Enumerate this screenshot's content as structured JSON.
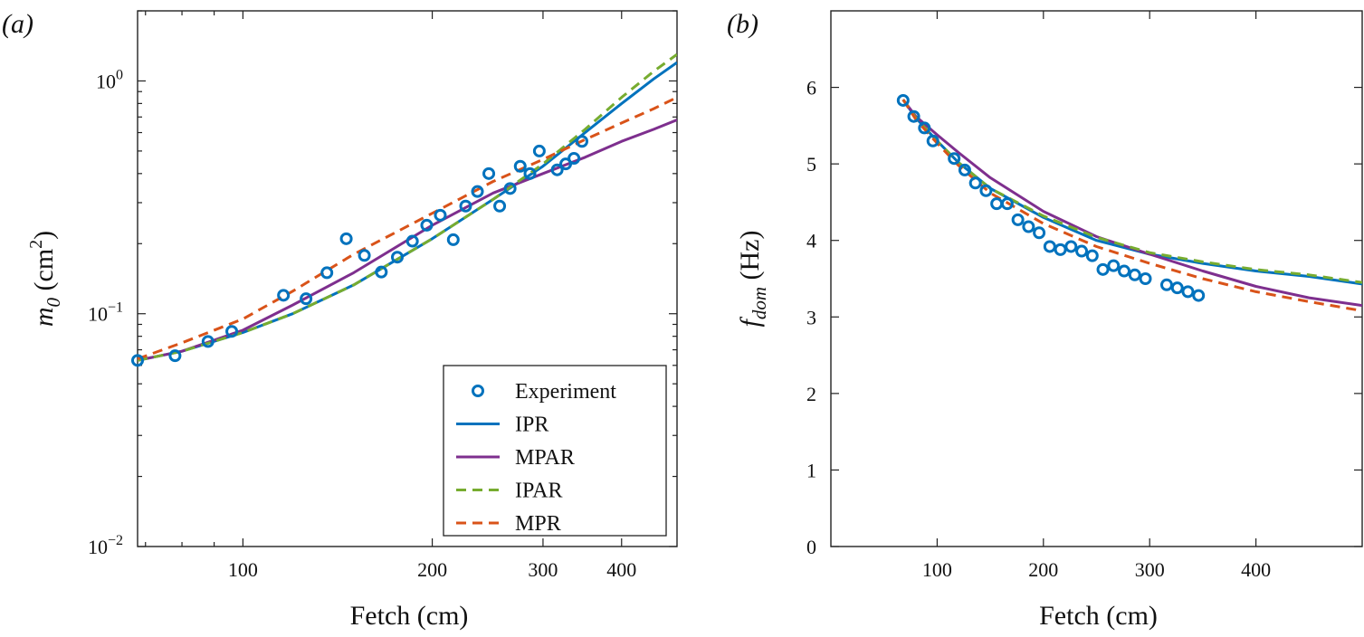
{
  "colors": {
    "experiment": "#0072BD",
    "ipr": "#0072BD",
    "mpar": "#7E2F8E",
    "ipar": "#77AC30",
    "mpr": "#D95319"
  },
  "chart_data": [
    {
      "type": "line",
      "panel_label": "(a)",
      "title": "",
      "xlabel": "Fetch (cm)",
      "ylabel_base": "m",
      "ylabel_sub": "0",
      "ylabel_unit_open": " (cm",
      "ylabel_unit_sup": "2",
      "ylabel_unit_close": ")",
      "xscale": "log",
      "yscale": "log",
      "xlim": [
        68,
        490
      ],
      "ylim": [
        0.01,
        2.0
      ],
      "xticks": [
        100,
        200,
        300,
        400
      ],
      "xtick_labels": [
        "100",
        "200",
        "300",
        "400"
      ],
      "yticks": [
        1,
        0.1,
        0.01
      ],
      "ytick_bases": [
        "10",
        "10",
        "10"
      ],
      "ytick_exps": [
        "0",
        "−1",
        "−2"
      ],
      "legend_position": "bottom-right",
      "legend": [
        "Experiment",
        "IPR",
        "MPAR",
        "IPAR",
        "MPR"
      ],
      "series": [
        {
          "name": "Experiment",
          "style": "marker",
          "color_key": "experiment",
          "x": [
            68,
            78,
            88,
            96,
            116,
            126,
            136,
            146,
            156,
            166,
            176,
            186,
            196,
            206,
            216,
            226,
            236,
            246,
            256,
            266,
            276,
            286,
            296,
            316,
            326,
            336,
            346
          ],
          "y": [
            0.063,
            0.066,
            0.076,
            0.084,
            0.12,
            0.116,
            0.15,
            0.21,
            0.178,
            0.151,
            0.175,
            0.205,
            0.24,
            0.265,
            0.208,
            0.29,
            0.335,
            0.4,
            0.29,
            0.345,
            0.43,
            0.4,
            0.5,
            0.415,
            0.44,
            0.465,
            0.55
          ]
        },
        {
          "name": "IPR",
          "style": "solid",
          "color_key": "ipr",
          "x": [
            68,
            80,
            100,
            120,
            150,
            200,
            250,
            300,
            350,
            400,
            450,
            490
          ],
          "y": [
            0.063,
            0.069,
            0.083,
            0.1,
            0.133,
            0.21,
            0.31,
            0.43,
            0.6,
            0.8,
            1.02,
            1.2
          ]
        },
        {
          "name": "MPAR",
          "style": "solid",
          "color_key": "mpar",
          "x": [
            68,
            80,
            100,
            120,
            150,
            200,
            250,
            300,
            350,
            400,
            450,
            490
          ],
          "y": [
            0.063,
            0.069,
            0.085,
            0.109,
            0.15,
            0.24,
            0.33,
            0.4,
            0.47,
            0.55,
            0.62,
            0.68
          ]
        },
        {
          "name": "IPAR",
          "style": "dashed",
          "color_key": "ipar",
          "x": [
            68,
            80,
            100,
            120,
            150,
            200,
            250,
            300,
            350,
            400,
            450,
            490
          ],
          "y": [
            0.063,
            0.069,
            0.083,
            0.1,
            0.133,
            0.21,
            0.31,
            0.44,
            0.62,
            0.85,
            1.1,
            1.3
          ]
        },
        {
          "name": "MPR",
          "style": "dashed",
          "color_key": "mpr",
          "x": [
            68,
            80,
            100,
            120,
            150,
            200,
            250,
            300,
            350,
            400,
            450,
            490
          ],
          "y": [
            0.064,
            0.075,
            0.095,
            0.125,
            0.18,
            0.27,
            0.37,
            0.46,
            0.56,
            0.66,
            0.76,
            0.85
          ]
        }
      ]
    },
    {
      "type": "line",
      "panel_label": "(b)",
      "title": "",
      "xlabel": "Fetch (cm)",
      "ylabel_base": "f",
      "ylabel_sub": "dom",
      "ylabel_unit_open": " (Hz)",
      "ylabel_unit_sup": "",
      "ylabel_unit_close": "",
      "xscale": "linear",
      "yscale": "linear",
      "xlim": [
        0,
        500
      ],
      "ylim": [
        0,
        7
      ],
      "xticks": [
        100,
        200,
        300,
        400
      ],
      "xtick_labels": [
        "100",
        "200",
        "300",
        "400"
      ],
      "yticks": [
        0,
        1,
        2,
        3,
        4,
        5,
        6
      ],
      "ytick_labels": [
        "0",
        "1",
        "2",
        "3",
        "4",
        "5",
        "6"
      ],
      "series": [
        {
          "name": "Experiment",
          "style": "marker",
          "color_key": "experiment",
          "x": [
            68,
            78,
            88,
            96,
            116,
            126,
            136,
            146,
            156,
            166,
            176,
            186,
            196,
            206,
            216,
            226,
            236,
            246,
            256,
            266,
            276,
            286,
            296,
            316,
            326,
            336,
            346
          ],
          "y": [
            5.83,
            5.62,
            5.47,
            5.3,
            5.07,
            4.92,
            4.75,
            4.65,
            4.48,
            4.48,
            4.27,
            4.18,
            4.1,
            3.92,
            3.88,
            3.92,
            3.86,
            3.8,
            3.62,
            3.67,
            3.6,
            3.55,
            3.5,
            3.42,
            3.38,
            3.33,
            3.28
          ]
        },
        {
          "name": "IPR",
          "style": "solid",
          "color_key": "ipr",
          "x": [
            68,
            80,
            100,
            120,
            150,
            200,
            250,
            300,
            350,
            400,
            450,
            500
          ],
          "y": [
            5.84,
            5.6,
            5.3,
            5.02,
            4.68,
            4.3,
            4.0,
            3.82,
            3.7,
            3.6,
            3.53,
            3.43
          ]
        },
        {
          "name": "MPAR",
          "style": "solid",
          "color_key": "mpar",
          "x": [
            68,
            80,
            100,
            120,
            150,
            200,
            250,
            300,
            350,
            400,
            450,
            500
          ],
          "y": [
            5.84,
            5.62,
            5.38,
            5.15,
            4.82,
            4.38,
            4.05,
            3.82,
            3.6,
            3.4,
            3.25,
            3.15
          ]
        },
        {
          "name": "IPAR",
          "style": "dashed",
          "color_key": "ipar",
          "x": [
            68,
            80,
            100,
            120,
            150,
            200,
            250,
            300,
            350,
            400,
            450,
            500
          ],
          "y": [
            5.84,
            5.6,
            5.3,
            5.02,
            4.68,
            4.32,
            4.04,
            3.84,
            3.72,
            3.62,
            3.55,
            3.45
          ]
        },
        {
          "name": "MPR",
          "style": "dashed",
          "color_key": "mpr",
          "x": [
            68,
            80,
            100,
            120,
            150,
            200,
            250,
            300,
            350,
            400,
            450,
            500
          ],
          "y": [
            5.84,
            5.58,
            5.27,
            4.98,
            4.62,
            4.22,
            3.92,
            3.7,
            3.5,
            3.33,
            3.2,
            3.08
          ]
        }
      ]
    }
  ]
}
